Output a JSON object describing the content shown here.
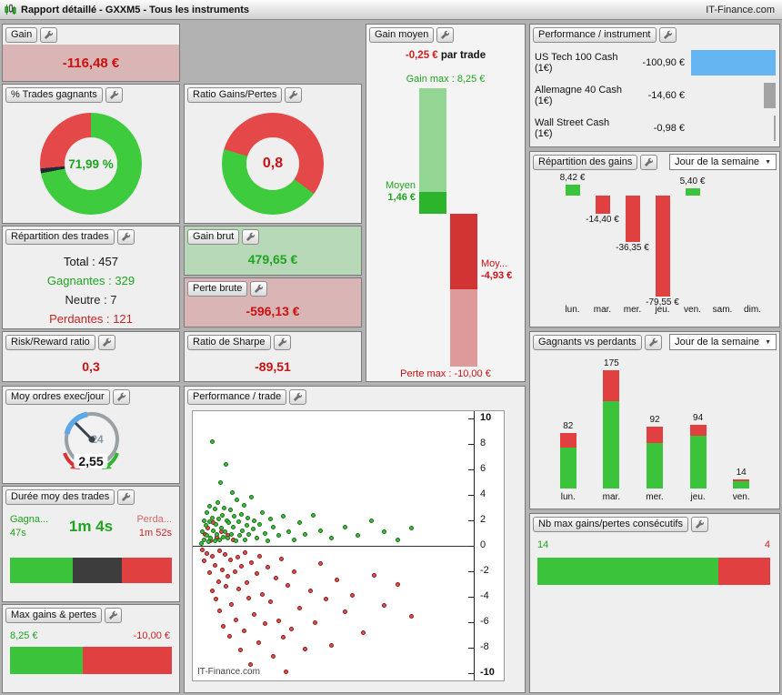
{
  "titlebar": {
    "title": "Rapport détaillé - GXXM5 - Tous les instruments",
    "brand": "IT-Finance.com"
  },
  "dropdown_label": "Jour de la semaine",
  "colors": {
    "green": "#3bc43b",
    "red": "#e04040",
    "dark": "#3d3d3d",
    "blue": "#64b5f2",
    "gray": "#a3a3a3"
  },
  "gain": {
    "label": "Gain",
    "value": "-116,48 €"
  },
  "pct_trades": {
    "label": "% Trades gagnants",
    "center": "71,99 %",
    "segments": [
      {
        "name": "gagnants",
        "pct": 71.99,
        "color": "#3ecb3e"
      },
      {
        "name": "neutres",
        "pct": 1.5,
        "color": "#222a36"
      },
      {
        "name": "perdants",
        "pct": 26.51,
        "color": "#e44848"
      }
    ]
  },
  "repartition_trades": {
    "label": "Répartition des trades",
    "rows": [
      {
        "text": "Total : 457",
        "color": "#111111"
      },
      {
        "text": "Gagnantes : 329",
        "color": "#1ea51e"
      },
      {
        "text": "Neutre : 7",
        "color": "#222222"
      },
      {
        "text": "Perdantes : 121",
        "color": "#cc2222"
      }
    ]
  },
  "risk_reward": {
    "label": "Risk/Reward ratio",
    "value": "0,3"
  },
  "moy_ordres": {
    "label": "Moy ordres exec/jour",
    "value": "2,55",
    "gauge_text": "24"
  },
  "duree": {
    "label": "Durée moy des trades",
    "win_label": "Gagna...",
    "win_value": "47s",
    "avg": "1m 4s",
    "loss_label": "Perda...",
    "loss_value": "1m 52s",
    "bar": [
      {
        "pct": 39,
        "color": "#3bc43b"
      },
      {
        "pct": 30,
        "color": "#3d3d3d"
      },
      {
        "pct": 31,
        "color": "#e04040"
      }
    ]
  },
  "max_gp": {
    "label": "Max gains & pertes",
    "gain": "8,25 €",
    "loss": "-10,00 €",
    "gain_pct": 45.2
  },
  "ratio_gp": {
    "label": "Ratio Gains/Pertes",
    "center": "0,8",
    "segments": [
      {
        "name": "pertes",
        "pct": 35,
        "color": "#e44848"
      },
      {
        "name": "gains",
        "pct": 44.6,
        "color": "#3ecb3e"
      },
      {
        "name": "pertes2",
        "pct": 20.4,
        "color": "#e44848"
      }
    ]
  },
  "gain_brut": {
    "label": "Gain brut",
    "value": "479,65 €"
  },
  "perte_brute": {
    "label": "Perte brute",
    "value": "-596,13 €"
  },
  "sharpe": {
    "label": "Ratio de Sharpe",
    "value": "-89,51"
  },
  "perf_trade": {
    "label": "Performance / trade",
    "watermark": "IT-Finance.com",
    "ymin": -10,
    "ymax": 10,
    "yticks": [
      10,
      8,
      6,
      4,
      2,
      0,
      -2,
      -4,
      -6,
      -8,
      -10
    ],
    "green": [
      [
        1,
        0.2
      ],
      [
        1.5,
        1.1
      ],
      [
        2,
        0.5
      ],
      [
        2.2,
        2.0
      ],
      [
        2.6,
        1.6
      ],
      [
        3,
        0.8
      ],
      [
        3.2,
        2.6
      ],
      [
        3.6,
        0.3
      ],
      [
        4,
        1.9
      ],
      [
        4.2,
        3.1
      ],
      [
        4.6,
        0.6
      ],
      [
        5,
        2.2
      ],
      [
        5,
        8.2
      ],
      [
        5.5,
        1.2
      ],
      [
        6,
        0.4
      ],
      [
        6.2,
        2.9
      ],
      [
        6.6,
        1.7
      ],
      [
        7,
        0.9
      ],
      [
        7.2,
        3.4
      ],
      [
        7.6,
        2.1
      ],
      [
        8,
        0.5
      ],
      [
        8.2,
        5.0
      ],
      [
        8.6,
        1.4
      ],
      [
        9,
        2.4
      ],
      [
        9.2,
        0.7
      ],
      [
        9.6,
        3.0
      ],
      [
        10,
        1.1
      ],
      [
        10.2,
        6.4
      ],
      [
        10.6,
        2.0
      ],
      [
        11,
        0.6
      ],
      [
        11.4,
        1.8
      ],
      [
        12,
        2.8
      ],
      [
        12.2,
        0.9
      ],
      [
        12.6,
        4.2
      ],
      [
        13,
        1.5
      ],
      [
        13.4,
        2.3
      ],
      [
        14,
        0.4
      ],
      [
        14.4,
        3.6
      ],
      [
        15,
        1.9
      ],
      [
        15.4,
        0.8
      ],
      [
        16,
        2.5
      ],
      [
        16.6,
        1.2
      ],
      [
        17,
        3.2
      ],
      [
        17.4,
        0.5
      ],
      [
        18,
        1.6
      ],
      [
        18.6,
        2.2
      ],
      [
        19,
        0.9
      ],
      [
        20,
        3.8
      ],
      [
        20.6,
        1.3
      ],
      [
        21,
        2.0
      ],
      [
        22,
        0.6
      ],
      [
        23,
        1.7
      ],
      [
        24,
        2.6
      ],
      [
        25,
        1.0
      ],
      [
        26,
        0.4
      ],
      [
        27,
        2.1
      ],
      [
        28,
        1.5
      ],
      [
        30,
        0.8
      ],
      [
        32,
        2.3
      ],
      [
        34,
        1.1
      ],
      [
        36,
        0.5
      ],
      [
        38,
        1.8
      ],
      [
        40,
        0.9
      ],
      [
        43,
        2.4
      ],
      [
        46,
        1.2
      ],
      [
        50,
        0.6
      ],
      [
        55,
        1.5
      ],
      [
        60,
        0.8
      ],
      [
        65,
        2.0
      ],
      [
        70,
        1.1
      ],
      [
        75,
        0.5
      ],
      [
        80,
        1.4
      ]
    ],
    "red": [
      [
        1.2,
        -0.3
      ],
      [
        2,
        -1.2
      ],
      [
        2.4,
        0.9
      ],
      [
        3,
        -0.6
      ],
      [
        3.4,
        1.4
      ],
      [
        4,
        -2.1
      ],
      [
        4.4,
        0.4
      ],
      [
        5,
        -0.8
      ],
      [
        5.2,
        -3.5
      ],
      [
        5.6,
        1.8
      ],
      [
        6,
        -1.5
      ],
      [
        6.4,
        -4.2
      ],
      [
        7,
        0.7
      ],
      [
        7.4,
        -2.8
      ],
      [
        7.8,
        -0.4
      ],
      [
        8,
        -5.1
      ],
      [
        8.4,
        1.1
      ],
      [
        9,
        -1.9
      ],
      [
        9.4,
        -6.3
      ],
      [
        10,
        -0.7
      ],
      [
        10.4,
        -3.2
      ],
      [
        10.8,
        0.8
      ],
      [
        11,
        -2.4
      ],
      [
        11.6,
        -7.1
      ],
      [
        12,
        -1.1
      ],
      [
        12.4,
        -4.6
      ],
      [
        13,
        0.5
      ],
      [
        13.6,
        -2.0
      ],
      [
        14,
        -5.8
      ],
      [
        14.6,
        -0.9
      ],
      [
        15,
        -3.4
      ],
      [
        15.6,
        -8.2
      ],
      [
        16,
        -1.6
      ],
      [
        17,
        -6.7
      ],
      [
        17.6,
        -0.5
      ],
      [
        18,
        -2.9
      ],
      [
        19,
        -4.1
      ],
      [
        19.6,
        -9.3
      ],
      [
        20,
        -1.3
      ],
      [
        21,
        -5.4
      ],
      [
        22,
        -2.2
      ],
      [
        22.6,
        -7.6
      ],
      [
        23,
        -0.8
      ],
      [
        24,
        -3.8
      ],
      [
        25,
        -6.1
      ],
      [
        26,
        -1.7
      ],
      [
        27,
        -4.4
      ],
      [
        28,
        -8.7
      ],
      [
        29,
        -2.5
      ],
      [
        30,
        -5.9
      ],
      [
        31,
        -1.0
      ],
      [
        32,
        -7.2
      ],
      [
        33,
        -9.9
      ],
      [
        33.6,
        -3.1
      ],
      [
        35,
        -6.5
      ],
      [
        36,
        -2.0
      ],
      [
        38,
        -4.9
      ],
      [
        40,
        -8.1
      ],
      [
        42,
        -3.5
      ],
      [
        44,
        -6.0
      ],
      [
        46,
        -1.4
      ],
      [
        48,
        -4.2
      ],
      [
        50,
        -7.8
      ],
      [
        52,
        -2.7
      ],
      [
        55,
        -5.2
      ],
      [
        58,
        -3.9
      ],
      [
        62,
        -6.8
      ],
      [
        66,
        -2.3
      ],
      [
        70,
        -4.7
      ],
      [
        75,
        -3.0
      ],
      [
        80,
        -5.5
      ]
    ]
  },
  "gain_moyen": {
    "label": "Gain moyen",
    "avg_value": "-0,25 €",
    "avg_suffix": " par trade",
    "gain_max_label": "Gain max : 8,25 €",
    "perte_max_label": "Perte max : -10,00 €",
    "moyen_label": "Moyen",
    "moyen_value": "1,46 €",
    "moy_loss_label": "Moy...",
    "moy_loss_value": "-4,93 €",
    "scale": {
      "gain_max": 8.25,
      "moyen_gain": 1.46,
      "moyen_perte": -4.93,
      "perte_max": -10
    }
  },
  "perf_instrument": {
    "label": "Performance / instrument",
    "rows": [
      {
        "name": "US Tech 100 Cash (1€)",
        "value": "-100,90 €",
        "amount": 100.9,
        "color": "#64b5f2"
      },
      {
        "name": "Allemagne 40 Cash (1€)",
        "value": "-14,60 €",
        "amount": 14.6,
        "color": "#a3a3a3"
      },
      {
        "name": "Wall Street Cash (1€)",
        "value": "-0,98 €",
        "amount": 0.98,
        "color": "#a3a3a3"
      }
    ]
  },
  "rep_gains": {
    "label": "Répartition des gains",
    "days": [
      "lun.",
      "mar.",
      "mer.",
      "jeu.",
      "ven.",
      "sam.",
      "dim."
    ],
    "values": [
      8.42,
      -14.4,
      -36.35,
      -79.55,
      5.4,
      null,
      null
    ],
    "value_labels": [
      "8,42 €",
      "-14,40 €",
      "-36,35 €",
      "-79,55 €",
      "5,40 €",
      "",
      ""
    ]
  },
  "gvp": {
    "label": "Gagnants vs perdants",
    "days": [
      "lun.",
      "mar.",
      "mer.",
      "jeu.",
      "ven."
    ],
    "totals": [
      82,
      175,
      92,
      94,
      14
    ],
    "losses_est": [
      22,
      46,
      24,
      16,
      3
    ]
  },
  "nb_max": {
    "label": "Nb max gains/pertes consécutifs",
    "gains": "14",
    "losses": "4",
    "gain_pct": 77.8
  }
}
